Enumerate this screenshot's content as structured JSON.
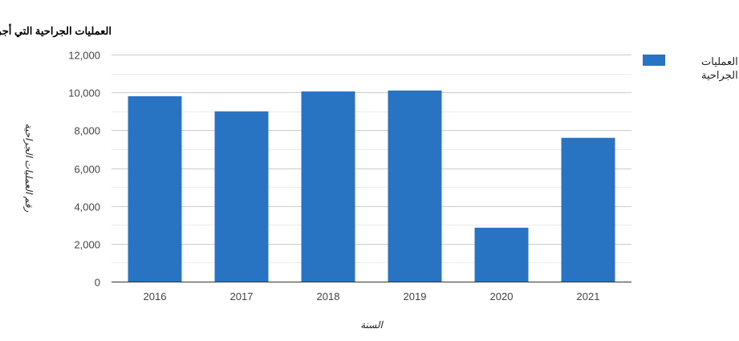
{
  "chart_data": {
    "type": "bar",
    "title": "العمليات الجراحية التي أجريت",
    "xlabel": "السنة",
    "ylabel": "رقم العمليات الجراحية",
    "categories": [
      "2016",
      "2017",
      "2018",
      "2019",
      "2020",
      "2021"
    ],
    "series": [
      {
        "name": "رقم العمليات الجراحية",
        "color": "#2874c3",
        "values": [
          9800,
          9000,
          10050,
          10100,
          2850,
          7600
        ]
      }
    ],
    "ylim": [
      0,
      12000
    ],
    "yticks": [
      0,
      2000,
      4000,
      6000,
      8000,
      10000,
      12000
    ],
    "ytick_labels": [
      "0",
      "2,000",
      "4,000",
      "6,000",
      "8,000",
      "10,000",
      "12,000"
    ],
    "grid": true,
    "legend": {
      "position": "right",
      "lines": [
        "رقم العمليات",
        "الجراحية"
      ]
    }
  }
}
